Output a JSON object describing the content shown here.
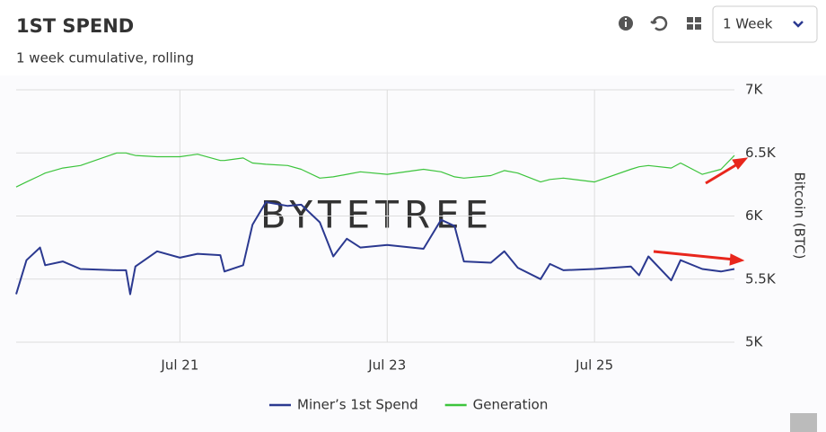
{
  "chart_data": {
    "type": "line",
    "title": "1ST SPEND",
    "subtitle": "1 week cumulative, rolling",
    "period": "1 Week",
    "watermark": "BYTETREE",
    "y_label": "Bitcoin (BTC)",
    "x": [
      19.42,
      19.52,
      19.65,
      19.7,
      19.87,
      20.04,
      20.39,
      20.48,
      20.52,
      20.57,
      20.78,
      21.0,
      21.17,
      21.39,
      21.43,
      21.61,
      21.7,
      21.83,
      22.04,
      22.17,
      22.35,
      22.48,
      22.61,
      22.74,
      23.0,
      23.35,
      23.52,
      23.65,
      23.74,
      24.0,
      24.13,
      24.26,
      24.48,
      24.57,
      24.7,
      25.0,
      25.35,
      25.43,
      25.52,
      25.74,
      25.83,
      26.04,
      26.22,
      26.35
    ],
    "xlim": [
      19.42,
      26.35
    ],
    "xticks": [
      {
        "value": 21,
        "label": "Jul 21"
      },
      {
        "value": 23,
        "label": "Jul 23"
      },
      {
        "value": 25,
        "label": "Jul 25"
      }
    ],
    "ylim": [
      5000,
      7000
    ],
    "yticks": [
      {
        "value": 5000,
        "label": "5K"
      },
      {
        "value": 5500,
        "label": "5.5K"
      },
      {
        "value": 6000,
        "label": "6K"
      },
      {
        "value": 6500,
        "label": "6.5K"
      },
      {
        "value": 7000,
        "label": "7K"
      }
    ],
    "grid": true,
    "legend": "bottom",
    "series": [
      {
        "name": "Miner’s 1st Spend",
        "color": "#2b3990",
        "values": [
          5380,
          5650,
          5750,
          5610,
          5640,
          5580,
          5570,
          5570,
          5380,
          5600,
          5720,
          5670,
          5700,
          5690,
          5560,
          5610,
          5930,
          6110,
          6080,
          6090,
          5950,
          5680,
          5820,
          5750,
          5770,
          5740,
          5970,
          5920,
          5640,
          5630,
          5720,
          5590,
          5500,
          5620,
          5570,
          5580,
          5600,
          5530,
          5680,
          5490,
          5650,
          5580,
          5560,
          5580
        ]
      },
      {
        "name": "Generation",
        "color": "#3cc43c",
        "values": [
          6230,
          6270,
          6320,
          6340,
          6380,
          6400,
          6500,
          6500,
          6490,
          6480,
          6470,
          6470,
          6490,
          6440,
          6440,
          6460,
          6420,
          6410,
          6400,
          6370,
          6300,
          6310,
          6330,
          6350,
          6330,
          6370,
          6350,
          6310,
          6300,
          6320,
          6360,
          6340,
          6270,
          6290,
          6300,
          6270,
          6370,
          6390,
          6400,
          6380,
          6420,
          6330,
          6370,
          6480
        ]
      }
    ]
  }
}
